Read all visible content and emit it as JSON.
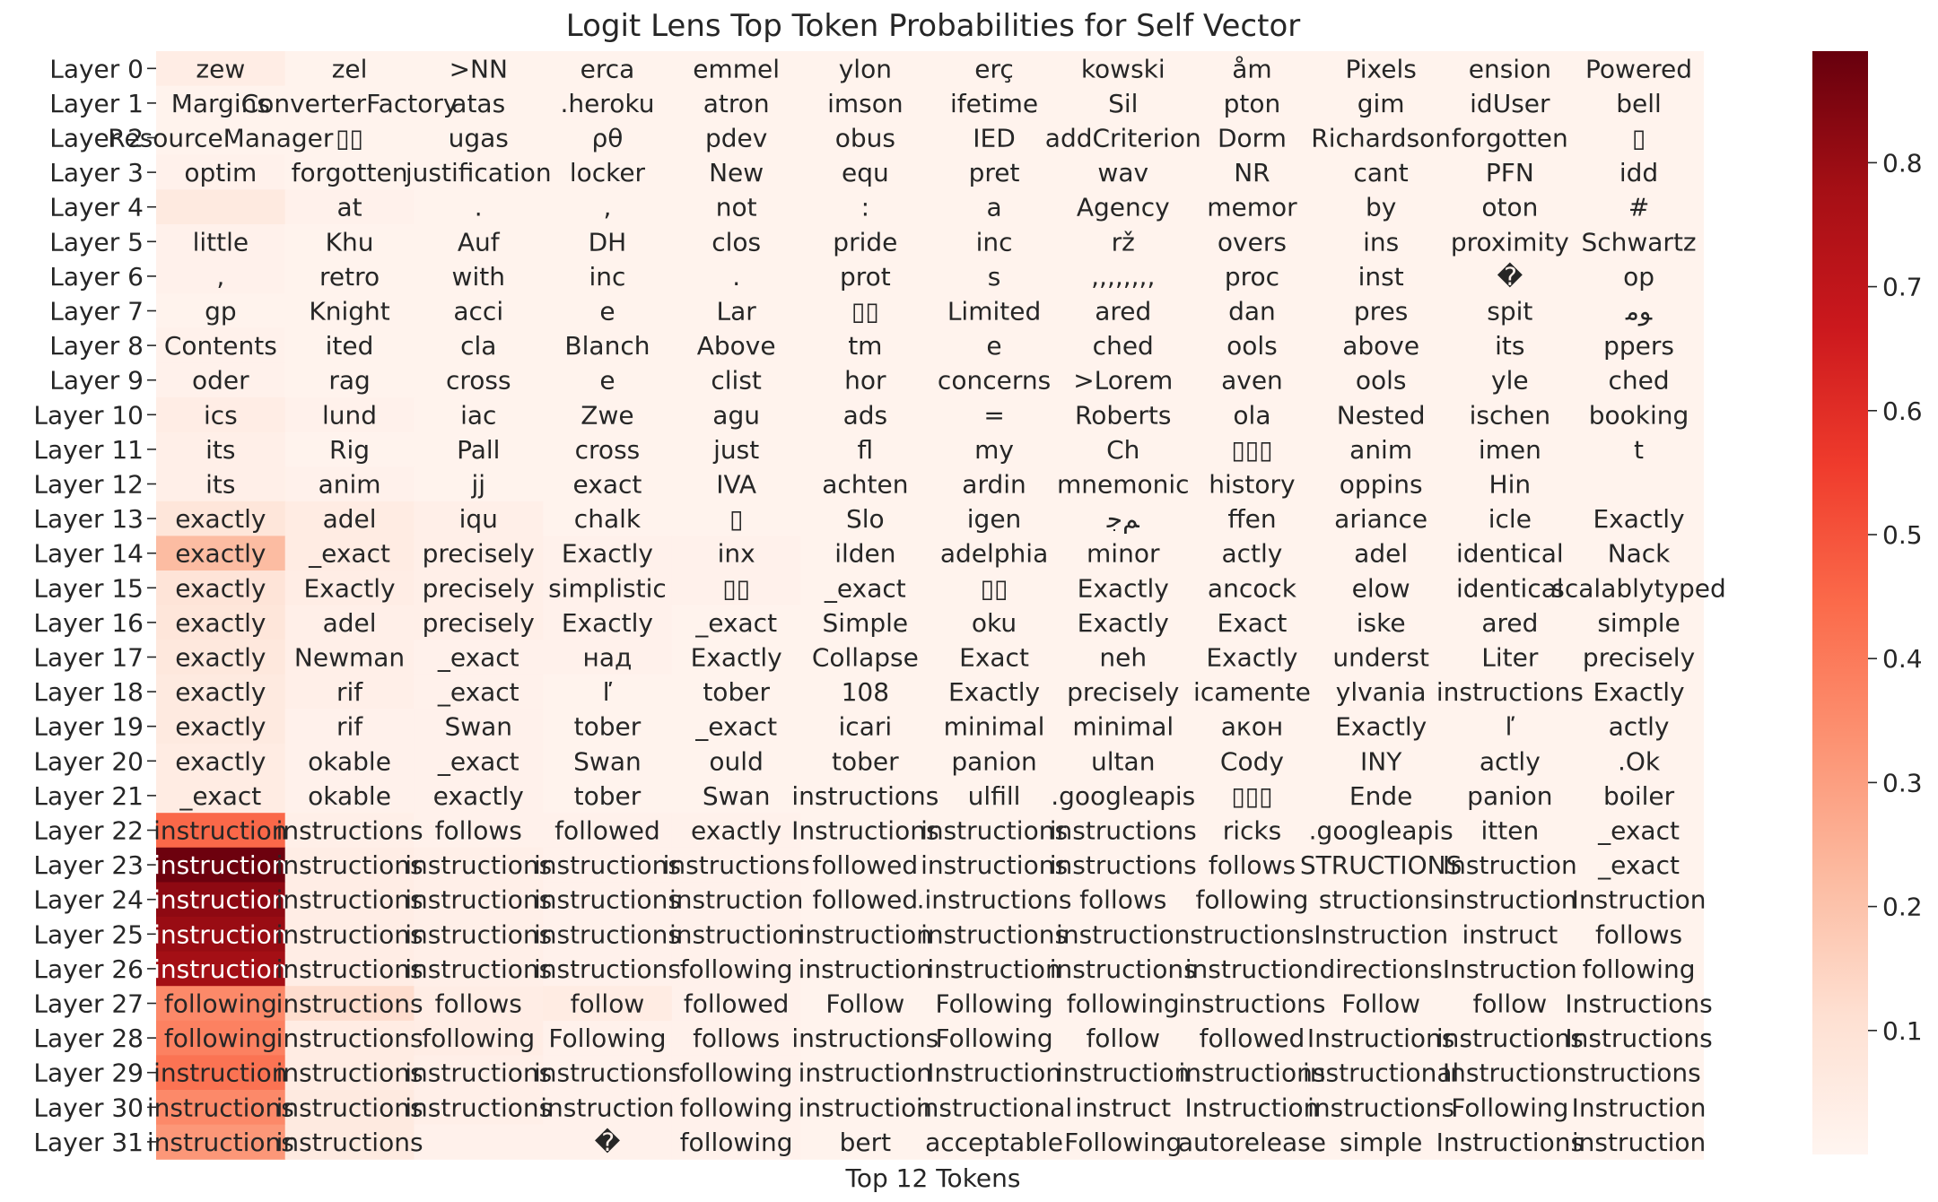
{
  "chart_data": {
    "type": "heatmap",
    "title": "Logit Lens Top Token Probabilities for Self Vector",
    "xlabel": "Top 12 Tokens",
    "ylabel": "",
    "row_labels": [
      "Layer 0",
      "Layer 1",
      "Layer 2",
      "Layer 3",
      "Layer 4",
      "Layer 5",
      "Layer 6",
      "Layer 7",
      "Layer 8",
      "Layer 9",
      "Layer 10",
      "Layer 11",
      "Layer 12",
      "Layer 13",
      "Layer 14",
      "Layer 15",
      "Layer 16",
      "Layer 17",
      "Layer 18",
      "Layer 19",
      "Layer 20",
      "Layer 21",
      "Layer 22",
      "Layer 23",
      "Layer 24",
      "Layer 25",
      "Layer 26",
      "Layer 27",
      "Layer 28",
      "Layer 29",
      "Layer 30",
      "Layer 31"
    ],
    "tokens": [
      [
        "zew",
        "zel",
        ">NN",
        "erca",
        "emmel",
        "ylon",
        "erç",
        "kowski",
        "åm",
        "Pixels",
        "ension",
        "Powered"
      ],
      [
        "Margins",
        "ConverterFactory",
        "atas",
        ".heroku",
        "atron",
        "imson",
        "ifetime",
        "Sil",
        "pton",
        "gim",
        "idUser",
        "bell"
      ],
      [
        "ResourceManager",
        "▯▯",
        "ugas",
        "ρθ",
        "pdev",
        "obus",
        "IED",
        "addCriterion",
        "Dorm",
        "Richardson",
        "forgotten",
        "▯"
      ],
      [
        "optim",
        "forgotten",
        "justification",
        "locker",
        "New",
        "equ",
        "pret",
        "wav",
        "NR",
        "cant",
        "PFN",
        "idd"
      ],
      [
        "",
        "at",
        ".",
        ",",
        "not",
        ":",
        "a",
        "Agency",
        "memor",
        "by",
        "oton",
        "#"
      ],
      [
        "little",
        "Khu",
        "Auf",
        "DH",
        "clos",
        "pride",
        "inc",
        "rž",
        "overs",
        "ins",
        "proximity",
        "Schwartz"
      ],
      [
        ",",
        "retro",
        "with",
        "inc",
        ".",
        "prot",
        "s",
        ",,,,,,,,",
        "proc",
        "inst",
        "�",
        "op"
      ],
      [
        "gp",
        "Knight",
        "acci",
        "e",
        "Lar",
        "▯▯",
        "Limited",
        "ared",
        "dan",
        "pres",
        "spit",
        "ﻮﻣ"
      ],
      [
        "Contents",
        "ited",
        "cla",
        "Blanch",
        "Above",
        "tm",
        "e",
        "ched",
        "ools",
        "above",
        "its",
        "ppers"
      ],
      [
        "oder",
        "rag",
        "cross",
        "e",
        "clist",
        "hor",
        "concerns",
        ">Lorem",
        "aven",
        "ools",
        "yle",
        "ched"
      ],
      [
        "ics",
        "lund",
        "iac",
        "Zwe",
        "agu",
        "ads",
        "=",
        "Roberts",
        "ola",
        "Nested",
        "ischen",
        "booking"
      ],
      [
        "its",
        "Rig",
        "Pall",
        "cross",
        "just",
        "fl",
        "my",
        "Ch",
        "▯▯▯",
        "anim",
        "imen",
        "t"
      ],
      [
        "its",
        "anim",
        "jj",
        "exact",
        "IVA",
        "achten",
        "ardin",
        "mnemonic",
        "history",
        "oppins",
        "Hin",
        ""
      ],
      [
        "exactly",
        "adel",
        "iqu",
        "chalk",
        "▯",
        "Slo",
        "igen",
        "ﻢﺟ",
        "ffen",
        "ariance",
        "icle",
        "Exactly"
      ],
      [
        "exactly",
        "_exact",
        "precisely",
        "Exactly",
        "inx",
        "ilden",
        "adelphia",
        "minor",
        "actly",
        "adel",
        "identical",
        "Nack"
      ],
      [
        "exactly",
        "Exactly",
        "precisely",
        "simplistic",
        "▯▯",
        "_exact",
        "▯▯",
        "Exactly",
        "ancock",
        "elow",
        "identical",
        "scalablytyped"
      ],
      [
        "exactly",
        "adel",
        "precisely",
        "Exactly",
        "_exact",
        "Simple",
        "oku",
        "Exactly",
        "Exact",
        "iske",
        "ared",
        "simple"
      ],
      [
        "exactly",
        "Newman",
        "_exact",
        "над",
        "Exactly",
        "Collapse",
        "Exact",
        "neh",
        "Exactly",
        "underst",
        "Liter",
        "precisely"
      ],
      [
        "exactly",
        "rif",
        "_exact",
        "ľ",
        "tober",
        "108",
        "Exactly",
        "precisely",
        "icamente",
        "ylvania",
        "instructions",
        "Exactly"
      ],
      [
        "exactly",
        "rif",
        "Swan",
        "tober",
        "_exact",
        "icari",
        "minimal",
        "minimal",
        "акон",
        "Exactly",
        "ľ",
        "actly"
      ],
      [
        "exactly",
        "okable",
        "_exact",
        "Swan",
        "ould",
        "tober",
        "panion",
        "ultan",
        "Cody",
        "INY",
        "actly",
        ".Ok"
      ],
      [
        "_exact",
        "okable",
        "exactly",
        "tober",
        "Swan",
        "instructions",
        "ulfill",
        ".googleapis",
        "▯▯▯",
        "Ende",
        "panion",
        "boiler"
      ],
      [
        "instruction",
        "instructions",
        "follows",
        "followed",
        "exactly",
        "Instructions",
        "instructions",
        "instructions",
        "ricks",
        ".googleapis",
        "itten",
        "_exact"
      ],
      [
        "instruction",
        "instructions",
        "instructions",
        "instructions",
        "instructions",
        "followed",
        "instructions",
        "instructions",
        "follows",
        "STRUCTIONS",
        "Instruction",
        "_exact"
      ],
      [
        "instruction",
        "instructions",
        "instructions",
        "instructions",
        "instruction",
        "followed",
        ".instructions",
        "follows",
        "following",
        "structions",
        "instruction",
        "Instruction"
      ],
      [
        "instruction",
        "instructions",
        "instructions",
        "instructions",
        "instruction",
        "instruction",
        "instructions",
        "instruction",
        "structions",
        "Instruction",
        "instruct",
        "follows"
      ],
      [
        "instruction",
        "instructions",
        "instructions",
        "instructions",
        "following",
        "instruction",
        "instruction",
        "instructions",
        "instruction",
        "directions",
        "Instruction",
        "following"
      ],
      [
        "following",
        "instructions",
        "follows",
        "follow",
        "followed",
        "Follow",
        "Following",
        "following",
        "instructions",
        "Follow",
        "follow",
        "Instructions"
      ],
      [
        "following",
        "instructions",
        "following",
        "Following",
        "follows",
        "instructions",
        "Following",
        "follow",
        "followed",
        "Instructions",
        "instructions",
        "Instructions"
      ],
      [
        "instruction",
        "instructions",
        "instructions",
        "instructions",
        "following",
        "instruction",
        "Instruction",
        "instruction",
        "instructions",
        "instructional",
        "Instruction",
        "structions"
      ],
      [
        "instructions",
        "instructions",
        "instructions",
        "instruction",
        "following",
        "instruction",
        "instructional",
        "instruct",
        "Instruction",
        "instructions",
        "Following",
        "Instruction"
      ],
      [
        "instructions",
        "instructions",
        "",
        "�",
        "following",
        "bert",
        "acceptable",
        "Following",
        "autorelease",
        "simple",
        "Instructions",
        "instruction"
      ]
    ],
    "values": [
      [
        0.04,
        0.01,
        0.01,
        0.01,
        0.01,
        0.01,
        0.01,
        0.01,
        0.01,
        0.01,
        0.01,
        0.01
      ],
      [
        0.01,
        0.01,
        0.01,
        0.01,
        0.01,
        0.01,
        0.01,
        0.01,
        0.01,
        0.01,
        0.01,
        0.01
      ],
      [
        0.01,
        0.01,
        0.01,
        0.01,
        0.01,
        0.01,
        0.01,
        0.01,
        0.01,
        0.01,
        0.01,
        0.01
      ],
      [
        0.02,
        0.01,
        0.01,
        0.01,
        0.01,
        0.01,
        0.01,
        0.01,
        0.01,
        0.01,
        0.01,
        0.01
      ],
      [
        0.06,
        0.02,
        0.01,
        0.01,
        0.01,
        0.01,
        0.01,
        0.01,
        0.01,
        0.01,
        0.01,
        0.01
      ],
      [
        0.02,
        0.01,
        0.01,
        0.01,
        0.01,
        0.01,
        0.01,
        0.01,
        0.01,
        0.01,
        0.01,
        0.01
      ],
      [
        0.02,
        0.01,
        0.01,
        0.01,
        0.01,
        0.01,
        0.01,
        0.01,
        0.01,
        0.01,
        0.01,
        0.01
      ],
      [
        0.01,
        0.01,
        0.01,
        0.01,
        0.01,
        0.01,
        0.01,
        0.01,
        0.01,
        0.01,
        0.01,
        0.01
      ],
      [
        0.02,
        0.01,
        0.01,
        0.01,
        0.01,
        0.01,
        0.01,
        0.01,
        0.01,
        0.01,
        0.01,
        0.01
      ],
      [
        0.02,
        0.01,
        0.01,
        0.01,
        0.01,
        0.01,
        0.01,
        0.01,
        0.01,
        0.01,
        0.01,
        0.01
      ],
      [
        0.04,
        0.02,
        0.01,
        0.01,
        0.01,
        0.01,
        0.01,
        0.01,
        0.01,
        0.01,
        0.01,
        0.01
      ],
      [
        0.03,
        0.01,
        0.01,
        0.01,
        0.01,
        0.01,
        0.01,
        0.01,
        0.01,
        0.01,
        0.01,
        0.01
      ],
      [
        0.03,
        0.02,
        0.01,
        0.01,
        0.01,
        0.01,
        0.01,
        0.01,
        0.01,
        0.01,
        0.01,
        0.01
      ],
      [
        0.08,
        0.05,
        0.03,
        0.01,
        0.01,
        0.01,
        0.01,
        0.01,
        0.01,
        0.01,
        0.01,
        0.01
      ],
      [
        0.22,
        0.05,
        0.03,
        0.02,
        0.02,
        0.01,
        0.01,
        0.01,
        0.01,
        0.01,
        0.01,
        0.01
      ],
      [
        0.09,
        0.04,
        0.03,
        0.02,
        0.02,
        0.01,
        0.01,
        0.01,
        0.01,
        0.01,
        0.01,
        0.01
      ],
      [
        0.08,
        0.03,
        0.03,
        0.02,
        0.01,
        0.01,
        0.01,
        0.01,
        0.01,
        0.01,
        0.01,
        0.01
      ],
      [
        0.07,
        0.03,
        0.02,
        0.02,
        0.01,
        0.01,
        0.01,
        0.01,
        0.01,
        0.01,
        0.01,
        0.01
      ],
      [
        0.06,
        0.03,
        0.02,
        0.01,
        0.01,
        0.01,
        0.01,
        0.01,
        0.01,
        0.01,
        0.01,
        0.01
      ],
      [
        0.06,
        0.02,
        0.02,
        0.01,
        0.01,
        0.01,
        0.01,
        0.01,
        0.01,
        0.01,
        0.01,
        0.01
      ],
      [
        0.05,
        0.02,
        0.02,
        0.01,
        0.01,
        0.01,
        0.01,
        0.01,
        0.01,
        0.01,
        0.01,
        0.01
      ],
      [
        0.05,
        0.02,
        0.02,
        0.01,
        0.01,
        0.01,
        0.01,
        0.01,
        0.01,
        0.01,
        0.01,
        0.01
      ],
      [
        0.45,
        0.03,
        0.02,
        0.02,
        0.02,
        0.01,
        0.01,
        0.01,
        0.01,
        0.01,
        0.01,
        0.01
      ],
      [
        0.88,
        0.04,
        0.03,
        0.02,
        0.02,
        0.01,
        0.01,
        0.01,
        0.01,
        0.01,
        0.01,
        0.01
      ],
      [
        0.82,
        0.04,
        0.03,
        0.02,
        0.02,
        0.01,
        0.01,
        0.01,
        0.01,
        0.01,
        0.01,
        0.01
      ],
      [
        0.8,
        0.04,
        0.03,
        0.02,
        0.02,
        0.01,
        0.01,
        0.01,
        0.01,
        0.01,
        0.01,
        0.01
      ],
      [
        0.78,
        0.04,
        0.03,
        0.02,
        0.02,
        0.01,
        0.01,
        0.01,
        0.01,
        0.01,
        0.01,
        0.01
      ],
      [
        0.36,
        0.12,
        0.04,
        0.05,
        0.02,
        0.01,
        0.01,
        0.01,
        0.01,
        0.01,
        0.01,
        0.01
      ],
      [
        0.38,
        0.05,
        0.04,
        0.02,
        0.02,
        0.01,
        0.01,
        0.01,
        0.01,
        0.01,
        0.01,
        0.01
      ],
      [
        0.42,
        0.05,
        0.03,
        0.02,
        0.02,
        0.01,
        0.01,
        0.01,
        0.01,
        0.01,
        0.01,
        0.01
      ],
      [
        0.36,
        0.06,
        0.03,
        0.02,
        0.02,
        0.01,
        0.01,
        0.01,
        0.01,
        0.01,
        0.01,
        0.01
      ],
      [
        0.32,
        0.06,
        0.02,
        0.02,
        0.02,
        0.01,
        0.01,
        0.01,
        0.01,
        0.01,
        0.01,
        0.01
      ]
    ],
    "colorbar": {
      "ticks": [
        0.1,
        0.2,
        0.3,
        0.4,
        0.5,
        0.6,
        0.7,
        0.8
      ],
      "tick_labels": [
        "0.1",
        "0.2",
        "0.3",
        "0.4",
        "0.5",
        "0.6",
        "0.7",
        "0.8"
      ],
      "range": [
        0.0,
        0.89
      ],
      "colormap": "Reds",
      "colors": [
        "#fff5f0",
        "#fee0d2",
        "#fcbba1",
        "#fc9272",
        "#fb6a4a",
        "#ef3b2c",
        "#cb181d",
        "#a50f15",
        "#67000d"
      ]
    }
  }
}
